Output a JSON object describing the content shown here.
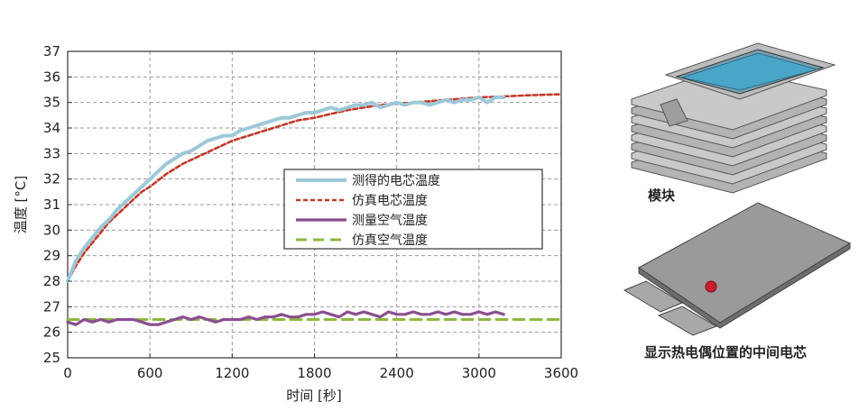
{
  "chart_data": {
    "type": "line",
    "xlabel": "时间 [秒]",
    "ylabel": "温度 [°C]",
    "xlim": [
      0,
      3600
    ],
    "ylim": [
      25,
      37
    ],
    "xticks": [
      0,
      600,
      1200,
      1800,
      2400,
      3000,
      3600
    ],
    "yticks": [
      25,
      26,
      27,
      28,
      29,
      30,
      31,
      32,
      33,
      34,
      35,
      36,
      37
    ],
    "grid": true,
    "legend_position": "center-right",
    "series": [
      {
        "name": "测得的电芯温度",
        "color": "#9cc8d8",
        "style": "solid",
        "x": [
          0,
          60,
          120,
          180,
          240,
          300,
          360,
          420,
          480,
          540,
          600,
          660,
          720,
          780,
          840,
          900,
          960,
          1020,
          1080,
          1140,
          1200,
          1260,
          1320,
          1380,
          1440,
          1500,
          1560,
          1620,
          1680,
          1740,
          1800,
          1860,
          1920,
          1980,
          2040,
          2100,
          2160,
          2220,
          2280,
          2340,
          2400,
          2460,
          2520,
          2580,
          2640,
          2700,
          2760,
          2820,
          2880,
          2940,
          3000,
          3060,
          3120,
          3180
        ],
        "y": [
          28.0,
          28.8,
          29.3,
          29.7,
          30.1,
          30.4,
          30.8,
          31.1,
          31.4,
          31.7,
          32.0,
          32.3,
          32.6,
          32.8,
          33.0,
          33.1,
          33.3,
          33.5,
          33.6,
          33.7,
          33.7,
          33.9,
          34.0,
          34.1,
          34.2,
          34.3,
          34.4,
          34.4,
          34.5,
          34.6,
          34.6,
          34.7,
          34.8,
          34.7,
          34.8,
          34.9,
          34.9,
          35.0,
          34.8,
          34.9,
          35.0,
          34.9,
          35.0,
          35.0,
          34.9,
          35.0,
          35.1,
          35.0,
          35.1,
          35.1,
          35.2,
          35.0,
          35.2,
          35.2
        ]
      },
      {
        "name": "仿真电芯温度",
        "color": "#c03a2b",
        "style": "dashed",
        "x": [
          0,
          60,
          120,
          180,
          240,
          300,
          360,
          420,
          480,
          540,
          600,
          720,
          840,
          960,
          1080,
          1200,
          1320,
          1440,
          1560,
          1680,
          1800,
          1920,
          2040,
          2160,
          2280,
          2400,
          2520,
          2640,
          2760,
          2880,
          3000,
          3120,
          3240,
          3360,
          3480,
          3600
        ],
        "y": [
          28.0,
          28.6,
          29.1,
          29.5,
          29.9,
          30.3,
          30.6,
          30.9,
          31.2,
          31.5,
          31.7,
          32.2,
          32.6,
          32.9,
          33.2,
          33.5,
          33.7,
          33.9,
          34.1,
          34.3,
          34.4,
          34.55,
          34.7,
          34.8,
          34.9,
          34.95,
          35.0,
          35.05,
          35.1,
          35.15,
          35.2,
          35.22,
          35.25,
          35.28,
          35.3,
          35.32
        ]
      },
      {
        "name": "测量空气温度",
        "color": "#8b4f8f",
        "style": "solid",
        "x": [
          0,
          60,
          120,
          180,
          240,
          300,
          360,
          420,
          480,
          540,
          600,
          660,
          720,
          780,
          840,
          900,
          960,
          1020,
          1080,
          1140,
          1200,
          1260,
          1320,
          1380,
          1440,
          1500,
          1560,
          1620,
          1680,
          1740,
          1800,
          1860,
          1920,
          1980,
          2040,
          2100,
          2160,
          2220,
          2280,
          2340,
          2400,
          2460,
          2520,
          2580,
          2640,
          2700,
          2760,
          2820,
          2880,
          2940,
          3000,
          3060,
          3120,
          3180
        ],
        "y": [
          26.4,
          26.3,
          26.5,
          26.4,
          26.5,
          26.4,
          26.5,
          26.5,
          26.5,
          26.4,
          26.3,
          26.3,
          26.4,
          26.5,
          26.6,
          26.5,
          26.6,
          26.5,
          26.4,
          26.5,
          26.5,
          26.5,
          26.6,
          26.5,
          26.6,
          26.6,
          26.7,
          26.6,
          26.6,
          26.7,
          26.7,
          26.8,
          26.7,
          26.6,
          26.8,
          26.7,
          26.8,
          26.7,
          26.6,
          26.8,
          26.7,
          26.7,
          26.8,
          26.7,
          26.7,
          26.8,
          26.7,
          26.8,
          26.7,
          26.7,
          26.8,
          26.7,
          26.8,
          26.7
        ]
      },
      {
        "name": "仿真空气温度",
        "color": "#8db840",
        "style": "dashed",
        "x": [
          0,
          3600
        ],
        "y": [
          26.5,
          26.5
        ]
      }
    ]
  },
  "images": {
    "module_caption": "模块",
    "cell_caption": "显示热电偶位置的中间电芯"
  }
}
